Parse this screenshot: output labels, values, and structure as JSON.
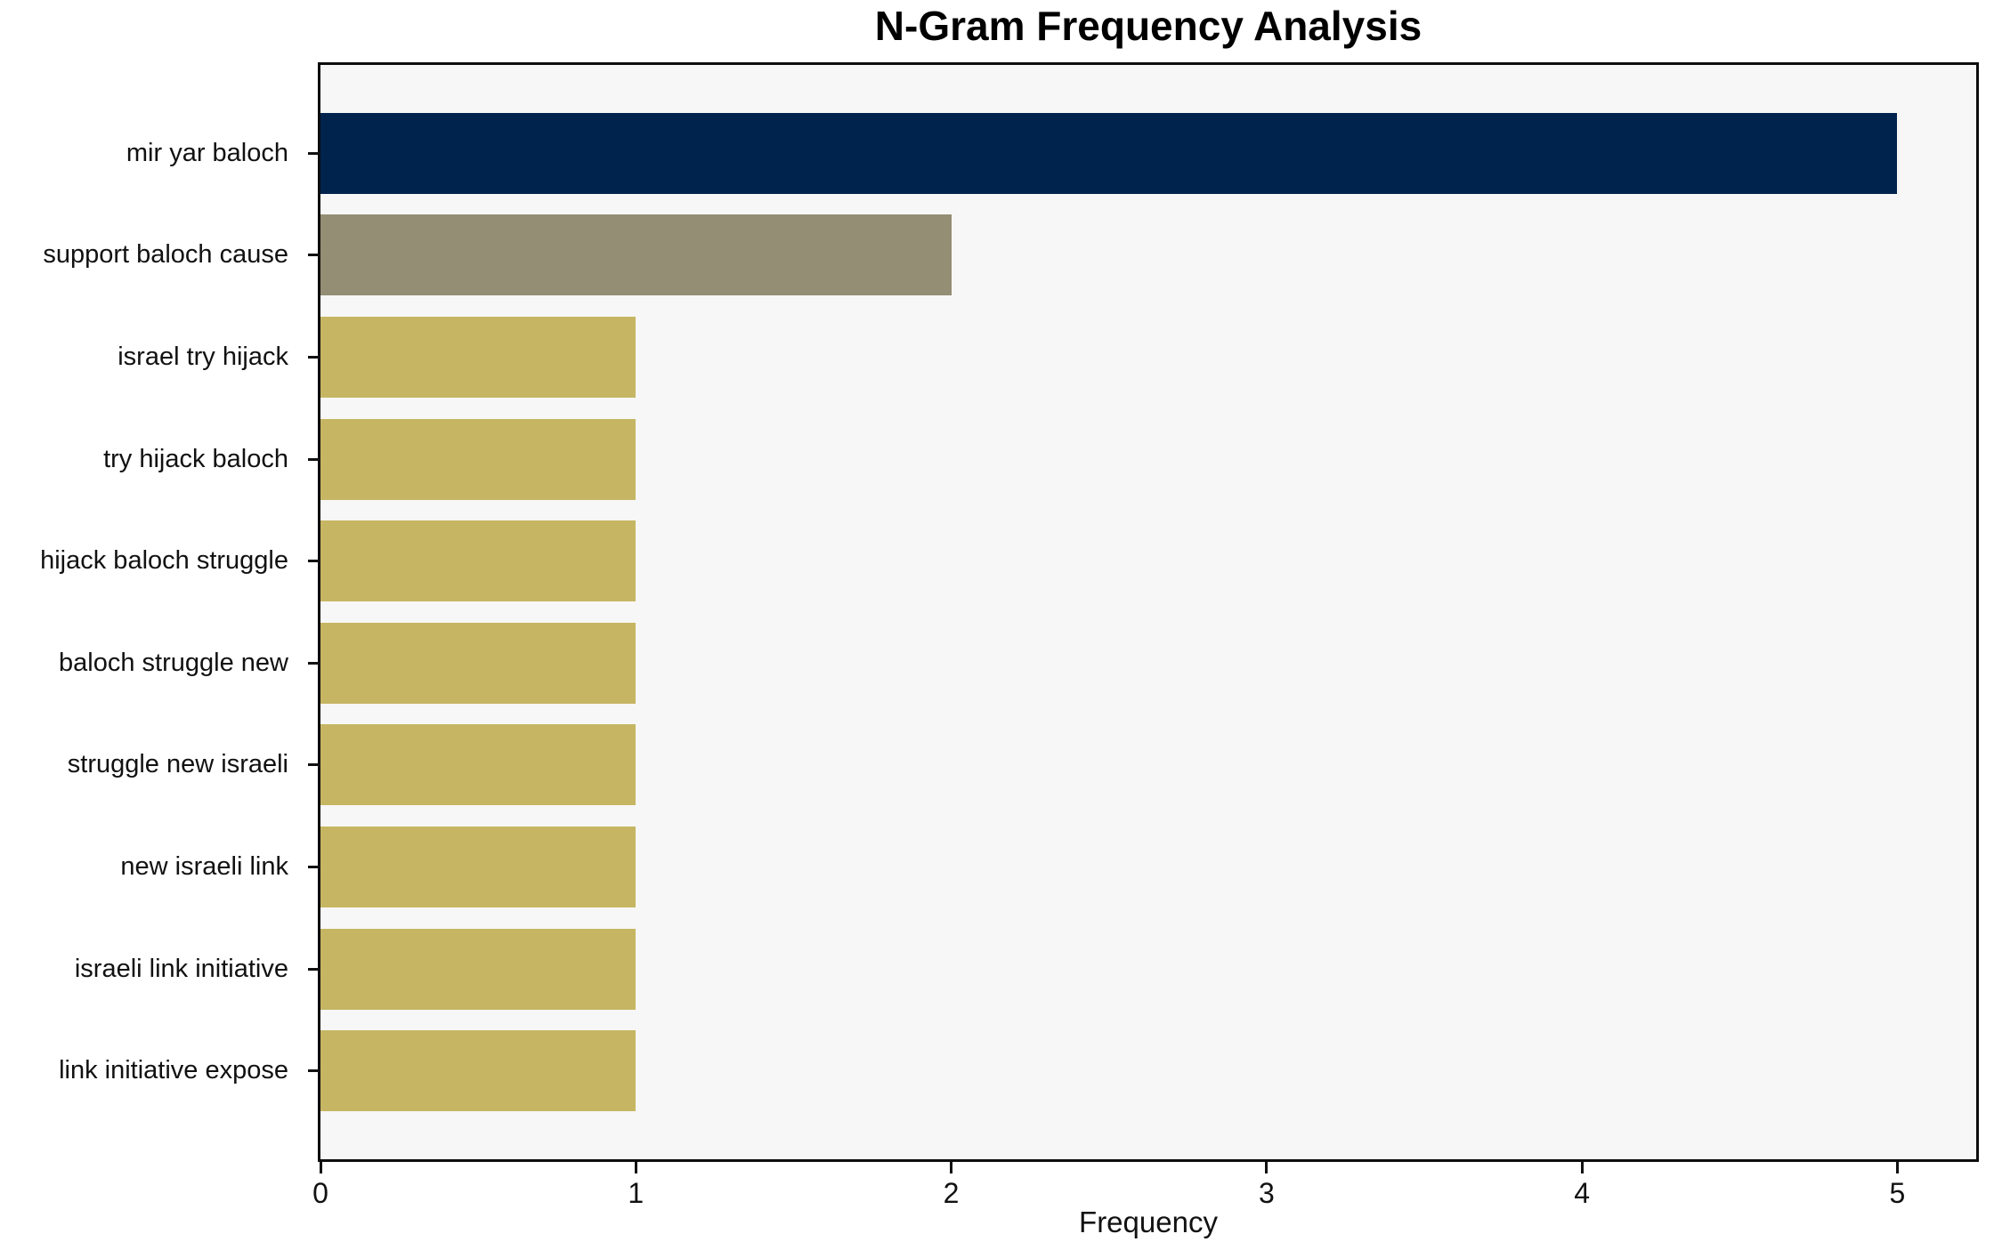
{
  "chart_data": {
    "type": "bar",
    "orientation": "horizontal",
    "title": "N-Gram Frequency Analysis",
    "xlabel": "Frequency",
    "ylabel": "",
    "categories": [
      "mir yar baloch",
      "support baloch cause",
      "israel try hijack",
      "try hijack baloch",
      "hijack baloch struggle",
      "baloch struggle new",
      "struggle new israeli",
      "new israeli link",
      "israeli link initiative",
      "link initiative expose"
    ],
    "values": [
      5,
      2,
      1,
      1,
      1,
      1,
      1,
      1,
      1,
      1
    ],
    "bar_colors": [
      "#00234d",
      "#948e75",
      "#c6b663",
      "#c6b663",
      "#c6b663",
      "#c6b663",
      "#c6b663",
      "#c6b663",
      "#c6b663",
      "#c6b663"
    ],
    "xticks": [
      0,
      1,
      2,
      3,
      4,
      5
    ],
    "xlim": [
      0,
      5.25
    ],
    "grid": false,
    "legend_position": "none",
    "plot_background": "#f7f7f7",
    "figure_background": "#ffffff",
    "spine_color": "#0d0d0d",
    "text_color": "#111111"
  }
}
